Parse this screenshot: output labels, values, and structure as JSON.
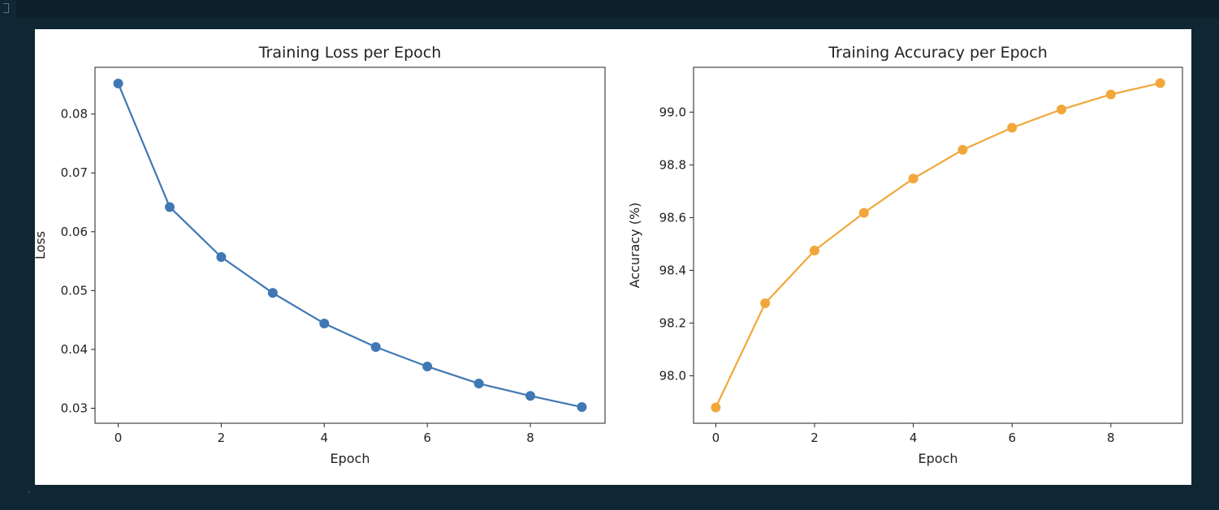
{
  "notebook": {
    "cell_marker": "]",
    "scroll_hint": "‹"
  },
  "chart_data": [
    {
      "type": "line",
      "title": "Training Loss per Epoch",
      "xlabel": "Epoch",
      "ylabel": "Loss",
      "x": [
        0,
        1,
        2,
        3,
        4,
        5,
        6,
        7,
        8,
        9
      ],
      "y": [
        0.0852,
        0.0642,
        0.0557,
        0.0496,
        0.0444,
        0.0404,
        0.0371,
        0.0342,
        0.0321,
        0.0302
      ],
      "xlim": [
        -0.45,
        9.45
      ],
      "ylim": [
        0.02745,
        0.08795
      ],
      "xticks": [
        0,
        2,
        4,
        6,
        8
      ],
      "xtick_labels": [
        "0",
        "2",
        "4",
        "6",
        "8"
      ],
      "yticks": [
        0.03,
        0.04,
        0.05,
        0.06,
        0.07,
        0.08
      ],
      "ytick_labels": [
        "0.03",
        "0.04",
        "0.05",
        "0.06",
        "0.07",
        "0.08"
      ],
      "color": "#3f78b4",
      "marker": "circle",
      "grid": false
    },
    {
      "type": "line",
      "title": "Training Accuracy per Epoch",
      "xlabel": "Epoch",
      "ylabel": "Accuracy (%)",
      "x": [
        0,
        1,
        2,
        3,
        4,
        5,
        6,
        7,
        8,
        9
      ],
      "y": [
        97.88,
        98.275,
        98.475,
        98.618,
        98.748,
        98.857,
        98.941,
        99.01,
        99.067,
        99.11
      ],
      "xlim": [
        -0.45,
        9.45
      ],
      "ylim": [
        97.82,
        99.17
      ],
      "xticks": [
        0,
        2,
        4,
        6,
        8
      ],
      "xtick_labels": [
        "0",
        "2",
        "4",
        "6",
        "8"
      ],
      "yticks": [
        98.0,
        98.2,
        98.4,
        98.6,
        98.8,
        99.0
      ],
      "ytick_labels": [
        "98.0",
        "98.2",
        "98.4",
        "98.6",
        "98.8",
        "99.0"
      ],
      "color": "#f2a73b",
      "marker": "circle",
      "grid": false
    }
  ]
}
